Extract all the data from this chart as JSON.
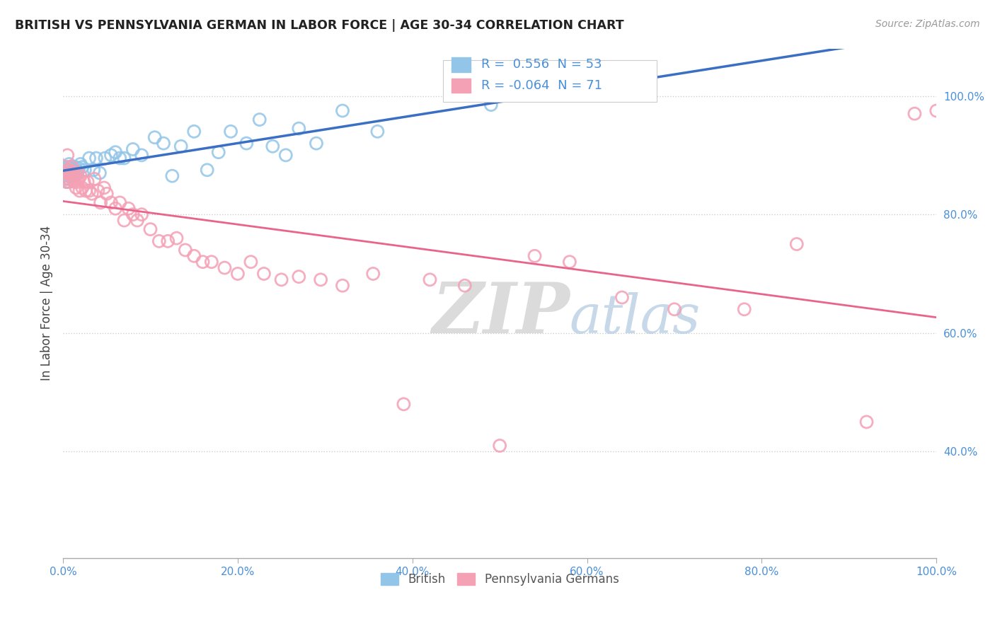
{
  "title": "BRITISH VS PENNSYLVANIA GERMAN IN LABOR FORCE | AGE 30-34 CORRELATION CHART",
  "source": "Source: ZipAtlas.com",
  "ylabel": "In Labor Force | Age 30-34",
  "xlim": [
    0.0,
    1.0
  ],
  "ylim": [
    0.22,
    1.08
  ],
  "x_ticks": [
    0.0,
    0.2,
    0.4,
    0.6,
    0.8,
    1.0
  ],
  "x_tick_labels": [
    "0.0%",
    "20.0%",
    "40.0%",
    "60.0%",
    "80.0%",
    "100.0%"
  ],
  "y_ticks": [
    0.4,
    0.6,
    0.8,
    1.0
  ],
  "y_tick_labels": [
    "40.0%",
    "60.0%",
    "80.0%",
    "100.0%"
  ],
  "british_color": "#92c5e8",
  "penn_german_color": "#f4a0b5",
  "british_line_color": "#3a6fc4",
  "penn_german_line_color": "#e8648a",
  "british_R": 0.556,
  "british_N": 53,
  "penn_german_R": -0.064,
  "penn_german_N": 71,
  "watermark_zip": "ZIP",
  "watermark_atlas": "atlas",
  "british_x": [
    0.002,
    0.003,
    0.004,
    0.004,
    0.005,
    0.005,
    0.006,
    0.006,
    0.007,
    0.007,
    0.008,
    0.008,
    0.009,
    0.01,
    0.01,
    0.011,
    0.012,
    0.013,
    0.014,
    0.015,
    0.016,
    0.018,
    0.02,
    0.022,
    0.025,
    0.03,
    0.035,
    0.038,
    0.042,
    0.048,
    0.055,
    0.06,
    0.065,
    0.07,
    0.08,
    0.09,
    0.105,
    0.115,
    0.125,
    0.135,
    0.15,
    0.165,
    0.178,
    0.192,
    0.21,
    0.225,
    0.24,
    0.255,
    0.27,
    0.29,
    0.32,
    0.36,
    0.49
  ],
  "british_y": [
    0.86,
    0.87,
    0.855,
    0.875,
    0.865,
    0.88,
    0.86,
    0.875,
    0.87,
    0.885,
    0.865,
    0.88,
    0.87,
    0.865,
    0.88,
    0.875,
    0.87,
    0.875,
    0.88,
    0.875,
    0.87,
    0.878,
    0.885,
    0.88,
    0.875,
    0.895,
    0.875,
    0.895,
    0.87,
    0.895,
    0.9,
    0.905,
    0.895,
    0.895,
    0.91,
    0.9,
    0.93,
    0.92,
    0.865,
    0.915,
    0.94,
    0.875,
    0.905,
    0.94,
    0.92,
    0.96,
    0.915,
    0.9,
    0.945,
    0.92,
    0.975,
    0.94,
    0.985
  ],
  "penn_german_x": [
    0.002,
    0.003,
    0.004,
    0.005,
    0.005,
    0.006,
    0.007,
    0.007,
    0.008,
    0.009,
    0.01,
    0.01,
    0.011,
    0.012,
    0.013,
    0.014,
    0.015,
    0.016,
    0.017,
    0.018,
    0.019,
    0.02,
    0.022,
    0.024,
    0.026,
    0.028,
    0.03,
    0.033,
    0.036,
    0.04,
    0.043,
    0.047,
    0.05,
    0.055,
    0.06,
    0.065,
    0.07,
    0.075,
    0.08,
    0.085,
    0.09,
    0.1,
    0.11,
    0.12,
    0.13,
    0.14,
    0.15,
    0.16,
    0.17,
    0.185,
    0.2,
    0.215,
    0.23,
    0.25,
    0.27,
    0.295,
    0.32,
    0.355,
    0.39,
    0.42,
    0.46,
    0.5,
    0.54,
    0.58,
    0.64,
    0.7,
    0.78,
    0.84,
    0.92,
    0.975,
    1.0
  ],
  "penn_german_y": [
    0.865,
    0.87,
    0.855,
    0.9,
    0.875,
    0.86,
    0.875,
    0.855,
    0.875,
    0.87,
    0.88,
    0.865,
    0.86,
    0.87,
    0.855,
    0.865,
    0.845,
    0.87,
    0.855,
    0.86,
    0.84,
    0.865,
    0.845,
    0.855,
    0.84,
    0.855,
    0.84,
    0.835,
    0.86,
    0.84,
    0.82,
    0.845,
    0.835,
    0.82,
    0.81,
    0.82,
    0.79,
    0.81,
    0.8,
    0.79,
    0.8,
    0.775,
    0.755,
    0.755,
    0.76,
    0.74,
    0.73,
    0.72,
    0.72,
    0.71,
    0.7,
    0.72,
    0.7,
    0.69,
    0.695,
    0.69,
    0.68,
    0.7,
    0.48,
    0.69,
    0.68,
    0.41,
    0.73,
    0.72,
    0.66,
    0.64,
    0.64,
    0.75,
    0.45,
    0.97,
    0.975
  ]
}
